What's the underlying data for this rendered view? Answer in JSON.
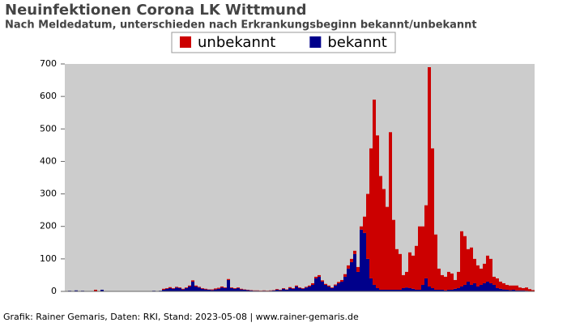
{
  "chart_data": {
    "type": "stacked-bar",
    "title": "Neuinfektionen Corona LK Wittmund",
    "subtitle": "Nach Meldedatum, unterschieden nach Erkrankungsbeginn bekannt/unbekannt",
    "footer": "Grafik: Rainer Gemaris, Daten: RKI, Stand: 2023-05-08 | www.rainer-gemaris.de",
    "legend_position": "top",
    "categories": [
      null,
      null,
      null,
      null,
      null,
      null,
      null,
      null,
      null,
      null,
      null,
      null,
      null,
      null,
      null,
      null,
      null,
      null,
      null,
      null,
      null,
      null,
      null,
      null,
      null,
      null,
      null,
      null,
      null,
      null,
      null,
      null,
      null,
      null,
      null,
      null,
      null,
      null,
      null,
      null,
      null,
      null,
      null,
      null,
      null,
      null,
      null,
      null,
      null,
      null,
      null,
      null,
      null,
      null,
      null,
      null,
      null,
      null,
      null,
      null,
      null,
      null,
      null,
      null,
      null,
      null,
      null,
      null,
      null,
      null,
      null,
      null,
      null,
      null,
      null,
      null,
      null,
      null,
      null,
      null,
      null,
      null,
      null,
      null,
      null,
      null,
      null,
      null,
      null,
      null,
      null,
      null,
      null,
      null,
      null,
      null,
      null,
      null,
      null,
      null,
      null,
      null,
      null,
      null,
      null,
      null,
      null,
      null,
      null,
      null,
      null,
      null,
      null,
      null,
      null,
      null,
      null,
      null,
      null,
      null,
      null,
      null,
      null,
      null,
      null,
      null,
      null,
      null,
      null,
      null,
      null,
      null,
      null,
      null,
      null,
      null,
      null,
      null,
      null,
      null,
      null,
      null,
      null,
      null,
      null
    ],
    "series": [
      {
        "name": "bekannt",
        "color": "#00008b",
        "values": [
          0,
          2,
          0,
          3,
          0,
          2,
          0,
          0,
          0,
          0,
          0,
          5,
          0,
          0,
          0,
          0,
          0,
          0,
          0,
          0,
          0,
          0,
          0,
          1,
          0,
          0,
          0,
          2,
          1,
          2,
          5,
          8,
          10,
          8,
          12,
          10,
          6,
          10,
          15,
          30,
          15,
          12,
          8,
          6,
          5,
          4,
          6,
          8,
          12,
          10,
          35,
          10,
          8,
          10,
          6,
          5,
          4,
          3,
          2,
          2,
          1,
          2,
          1,
          2,
          3,
          5,
          4,
          8,
          5,
          10,
          8,
          15,
          10,
          8,
          12,
          15,
          20,
          40,
          45,
          30,
          20,
          15,
          10,
          18,
          25,
          30,
          45,
          70,
          90,
          115,
          60,
          190,
          180,
          100,
          40,
          20,
          10,
          5,
          5,
          5,
          5,
          5,
          5,
          5,
          10,
          12,
          10,
          8,
          5,
          5,
          20,
          40,
          15,
          10,
          5,
          5,
          5,
          3,
          5,
          5,
          8,
          10,
          15,
          20,
          30,
          20,
          25,
          15,
          20,
          25,
          30,
          25,
          20,
          10,
          8,
          6,
          5,
          4,
          5,
          3,
          3,
          3,
          2,
          1,
          1
        ]
      },
      {
        "name": "unbekannt",
        "color": "#cc0000",
        "values": [
          0,
          0,
          0,
          0,
          0,
          0,
          0,
          0,
          0,
          5,
          0,
          0,
          0,
          0,
          0,
          0,
          0,
          0,
          0,
          0,
          0,
          0,
          0,
          0,
          0,
          0,
          0,
          0,
          0,
          0,
          3,
          2,
          3,
          2,
          2,
          2,
          2,
          2,
          3,
          4,
          3,
          2,
          2,
          2,
          1,
          2,
          3,
          3,
          3,
          2,
          3,
          2,
          2,
          2,
          2,
          1,
          1,
          1,
          1,
          1,
          1,
          1,
          1,
          1,
          1,
          2,
          1,
          2,
          1,
          3,
          2,
          3,
          2,
          2,
          2,
          3,
          5,
          5,
          5,
          4,
          3,
          3,
          2,
          3,
          4,
          5,
          8,
          10,
          10,
          10,
          15,
          10,
          50,
          200,
          400,
          570,
          470,
          350,
          310,
          255,
          485,
          215,
          125,
          110,
          40,
          48,
          110,
          102,
          135,
          195,
          180,
          225,
          675,
          430,
          170,
          65,
          45,
          42,
          55,
          50,
          27,
          50,
          170,
          150,
          100,
          115,
          75,
          65,
          50,
          60,
          80,
          75,
          25,
          30,
          22,
          19,
          15,
          14,
          13,
          15,
          9,
          7,
          10,
          6,
          3
        ]
      }
    ],
    "legend_order": [
      1,
      0
    ],
    "ylim": [
      0,
      700
    ],
    "yticks": [
      0,
      100,
      200,
      300,
      400,
      500,
      600,
      700
    ]
  }
}
